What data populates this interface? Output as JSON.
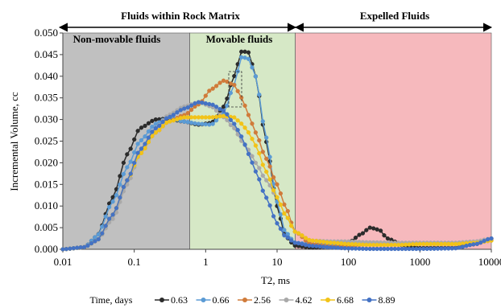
{
  "chart_data": {
    "type": "line",
    "title": "",
    "xlabel": "T2, ms",
    "ylabel": "Incremental Volume, cc",
    "x_scale": "log",
    "xlim": [
      0.01,
      10000
    ],
    "ylim": [
      0,
      0.05
    ],
    "x_ticks": [
      "0.01",
      "0.1",
      "1",
      "10",
      "100",
      "1000",
      "10000"
    ],
    "y_ticks": [
      "0.000",
      "0.005",
      "0.010",
      "0.015",
      "0.020",
      "0.025",
      "0.030",
      "0.035",
      "0.040",
      "0.045",
      "0.050"
    ],
    "grid": false,
    "legend_position": "bottom",
    "legend_title": "Time, days",
    "top_labels": {
      "matrix": "Fluids within Rock Matrix",
      "expelled": "Expelled Fluids"
    },
    "regions": [
      {
        "label": "Non-movable fluids",
        "x_range": [
          0.01,
          0.6
        ],
        "color": "#c0c0c0"
      },
      {
        "label": "Movable fluids",
        "x_range": [
          0.6,
          18
        ],
        "color": "#d6e8c6"
      },
      {
        "label": "",
        "x_range": [
          18,
          10000
        ],
        "color": "#f6b9bd"
      }
    ],
    "series": [
      {
        "name": "0.63",
        "color": "#2b2b2b",
        "points": [
          [
            0.01,
            0
          ],
          [
            0.02,
            0.0005
          ],
          [
            0.03,
            0.003
          ],
          [
            0.05,
            0.012
          ],
          [
            0.08,
            0.022
          ],
          [
            0.12,
            0.028
          ],
          [
            0.2,
            0.03
          ],
          [
            0.3,
            0.0302
          ],
          [
            0.5,
            0.0295
          ],
          [
            0.8,
            0.0288
          ],
          [
            1.2,
            0.0292
          ],
          [
            1.8,
            0.033
          ],
          [
            2.5,
            0.04
          ],
          [
            3.2,
            0.0458
          ],
          [
            4,
            0.0455
          ],
          [
            5,
            0.04
          ],
          [
            7,
            0.025
          ],
          [
            10,
            0.01
          ],
          [
            13,
            0.003
          ],
          [
            18,
            0.0008
          ],
          [
            30,
            0.0004
          ],
          [
            60,
            0.0006
          ],
          [
            100,
            0.0015
          ],
          [
            150,
            0.0035
          ],
          [
            200,
            0.005
          ],
          [
            270,
            0.0045
          ],
          [
            350,
            0.0025
          ],
          [
            600,
            0.0008
          ],
          [
            1000,
            0.0003
          ],
          [
            3000,
            0.0003
          ],
          [
            6000,
            0.0012
          ],
          [
            10000,
            0.0025
          ]
        ]
      },
      {
        "name": "0.66",
        "color": "#5b9bd5",
        "points": [
          [
            0.01,
            0
          ],
          [
            0.02,
            0.0005
          ],
          [
            0.03,
            0.003
          ],
          [
            0.05,
            0.011
          ],
          [
            0.08,
            0.019
          ],
          [
            0.12,
            0.025
          ],
          [
            0.2,
            0.029
          ],
          [
            0.3,
            0.0305
          ],
          [
            0.5,
            0.0295
          ],
          [
            0.8,
            0.029
          ],
          [
            1.2,
            0.0288
          ],
          [
            1.8,
            0.0315
          ],
          [
            2.5,
            0.038
          ],
          [
            3.2,
            0.0445
          ],
          [
            4,
            0.044
          ],
          [
            5,
            0.04
          ],
          [
            7,
            0.026
          ],
          [
            10,
            0.011
          ],
          [
            13,
            0.004
          ],
          [
            18,
            0.0015
          ],
          [
            30,
            0.0012
          ],
          [
            60,
            0.0012
          ],
          [
            100,
            0.0012
          ],
          [
            200,
            0.0012
          ],
          [
            500,
            0.0012
          ],
          [
            1000,
            0.0012
          ],
          [
            3000,
            0.0012
          ],
          [
            6000,
            0.0015
          ],
          [
            10000,
            0.002
          ]
        ]
      },
      {
        "name": "2.56",
        "color": "#d07b3a",
        "points": [
          [
            0.01,
            0
          ],
          [
            0.02,
            0.0005
          ],
          [
            0.03,
            0.002
          ],
          [
            0.05,
            0.008
          ],
          [
            0.08,
            0.016
          ],
          [
            0.12,
            0.022
          ],
          [
            0.2,
            0.027
          ],
          [
            0.3,
            0.0295
          ],
          [
            0.5,
            0.031
          ],
          [
            0.8,
            0.0335
          ],
          [
            1.2,
            0.037
          ],
          [
            1.8,
            0.039
          ],
          [
            2.5,
            0.038
          ],
          [
            3.2,
            0.035
          ],
          [
            4,
            0.031
          ],
          [
            5,
            0.027
          ],
          [
            7,
            0.021
          ],
          [
            10,
            0.015
          ],
          [
            13,
            0.01
          ],
          [
            18,
            0.004
          ],
          [
            30,
            0.0012
          ],
          [
            60,
            0.0006
          ],
          [
            100,
            0.0008
          ],
          [
            200,
            0.0012
          ],
          [
            400,
            0.0015
          ],
          [
            1000,
            0.0013
          ],
          [
            3000,
            0.0012
          ],
          [
            6000,
            0.0015
          ],
          [
            10000,
            0.0022
          ]
        ]
      },
      {
        "name": "4.62",
        "color": "#a9a9a9",
        "points": [
          [
            0.01,
            0
          ],
          [
            0.02,
            0.0005
          ],
          [
            0.03,
            0.002
          ],
          [
            0.05,
            0.007
          ],
          [
            0.08,
            0.015
          ],
          [
            0.12,
            0.022
          ],
          [
            0.2,
            0.028
          ],
          [
            0.3,
            0.031
          ],
          [
            0.5,
            0.033
          ],
          [
            0.8,
            0.034
          ],
          [
            1.2,
            0.033
          ],
          [
            1.8,
            0.0305
          ],
          [
            2.5,
            0.028
          ],
          [
            3.2,
            0.025
          ],
          [
            4,
            0.023
          ],
          [
            5,
            0.02
          ],
          [
            7,
            0.016
          ],
          [
            10,
            0.012
          ],
          [
            13,
            0.008
          ],
          [
            18,
            0.004
          ],
          [
            30,
            0.002
          ],
          [
            60,
            0.0018
          ],
          [
            100,
            0.0018
          ],
          [
            200,
            0.0016
          ],
          [
            500,
            0.0015
          ],
          [
            1000,
            0.0015
          ],
          [
            3000,
            0.0015
          ],
          [
            6000,
            0.0018
          ],
          [
            10000,
            0.0025
          ]
        ]
      },
      {
        "name": "6.68",
        "color": "#f2c318",
        "points": [
          [
            0.01,
            0
          ],
          [
            0.02,
            0.0005
          ],
          [
            0.03,
            0.002
          ],
          [
            0.05,
            0.008
          ],
          [
            0.08,
            0.016
          ],
          [
            0.12,
            0.022
          ],
          [
            0.2,
            0.027
          ],
          [
            0.3,
            0.0295
          ],
          [
            0.5,
            0.0305
          ],
          [
            0.8,
            0.0305
          ],
          [
            1.2,
            0.0305
          ],
          [
            1.8,
            0.0308
          ],
          [
            2.5,
            0.0305
          ],
          [
            3.2,
            0.029
          ],
          [
            4,
            0.027
          ],
          [
            5,
            0.024
          ],
          [
            7,
            0.018
          ],
          [
            10,
            0.012
          ],
          [
            13,
            0.008
          ],
          [
            18,
            0.004
          ],
          [
            30,
            0.002
          ],
          [
            60,
            0.0015
          ],
          [
            100,
            0.0012
          ],
          [
            200,
            0.001
          ],
          [
            500,
            0.001
          ],
          [
            1000,
            0.0012
          ],
          [
            3000,
            0.0012
          ],
          [
            6000,
            0.0015
          ],
          [
            10000,
            0.002
          ]
        ]
      },
      {
        "name": "8.89",
        "color": "#4472c4",
        "points": [
          [
            0.01,
            0
          ],
          [
            0.02,
            0.0005
          ],
          [
            0.03,
            0.002
          ],
          [
            0.05,
            0.008
          ],
          [
            0.08,
            0.016
          ],
          [
            0.12,
            0.023
          ],
          [
            0.2,
            0.028
          ],
          [
            0.3,
            0.0305
          ],
          [
            0.5,
            0.0325
          ],
          [
            0.8,
            0.034
          ],
          [
            1.2,
            0.0335
          ],
          [
            1.8,
            0.032
          ],
          [
            2.5,
            0.029
          ],
          [
            3.2,
            0.026
          ],
          [
            4,
            0.022
          ],
          [
            5,
            0.018
          ],
          [
            7,
            0.012
          ],
          [
            10,
            0.006
          ],
          [
            13,
            0.003
          ],
          [
            18,
            0.0015
          ],
          [
            30,
            0.0008
          ],
          [
            60,
            0.0004
          ],
          [
            100,
            0.0002
          ],
          [
            200,
            0.0001
          ],
          [
            500,
            0.0001
          ],
          [
            1000,
            0.0001
          ],
          [
            3000,
            0.0002
          ],
          [
            6000,
            0.0012
          ],
          [
            10000,
            0.0025
          ]
        ]
      }
    ]
  }
}
